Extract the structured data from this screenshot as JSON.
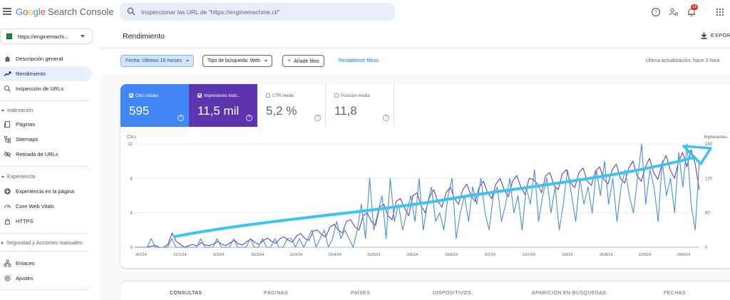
{
  "app": {
    "brand_google": "Google",
    "brand_product": "Search Console",
    "search_placeholder": "Inspeccionar las URL de \"https://enginemachine.cl/\"",
    "notification_count": "18",
    "icons": [
      "menu-icon",
      "search-icon",
      "help-icon",
      "account-settings-icon",
      "notifications-icon",
      "apps-grid-icon"
    ]
  },
  "sidebar": {
    "property_label": "https://enginemachi...",
    "items_top": [
      {
        "label": "Descripción general",
        "icon": "home-icon"
      },
      {
        "label": "Rendimiento",
        "icon": "trending-up-icon",
        "active": true
      },
      {
        "label": "Inspección de URLs",
        "icon": "search-icon"
      }
    ],
    "section_indexacion": "Indexación",
    "items_indexacion": [
      {
        "label": "Páginas",
        "icon": "pages-icon"
      },
      {
        "label": "Sitemaps",
        "icon": "sitemap-icon"
      },
      {
        "label": "Retirada de URLs",
        "icon": "eye-off-icon"
      }
    ],
    "section_experiencia": "Experiencia",
    "items_experiencia": [
      {
        "label": "Experiencia en la página",
        "icon": "plus-circle-icon"
      },
      {
        "label": "Core Web Vitals",
        "icon": "speed-icon"
      },
      {
        "label": "HTTPS",
        "icon": "lock-icon"
      }
    ],
    "section_seguridad": "Seguridad y Acciones manuales",
    "items_bottom": [
      {
        "label": "Enlaces",
        "icon": "links-icon"
      },
      {
        "label": "Ajustes",
        "icon": "settings-icon"
      }
    ]
  },
  "page": {
    "title": "Rendimiento",
    "export_label": "EXPORT",
    "filters": [
      {
        "label": "Fecha: Últimos 16 meses",
        "selected": true
      },
      {
        "label": "Tipo de búsqueda: Web",
        "selected": false
      }
    ],
    "add_filter": "Añadir filtro",
    "reset_filters": "Restablecer filtros",
    "last_update": "Última actualización: hace 3 hora"
  },
  "metrics": [
    {
      "label": "Clics totales",
      "value": "595",
      "checked": true,
      "color": "#4285f4"
    },
    {
      "label": "Impresiones total...",
      "value": "11,5 mil",
      "checked": true,
      "color": "#5e35b1"
    },
    {
      "label": "CTR medio",
      "value": "5,2 %",
      "checked": false
    },
    {
      "label": "Posición media",
      "value": "11,8",
      "checked": false
    }
  ],
  "chart_data": {
    "type": "line",
    "left_axis_label": "Clics",
    "right_axis_label": "Impresiones",
    "left_ticks": [
      "12",
      "8",
      "4",
      "0"
    ],
    "right_ticks": [
      "180",
      "120",
      "60",
      "0"
    ],
    "ylim_left": [
      0,
      12
    ],
    "ylim_right": [
      0,
      180
    ],
    "x_labels": [
      "4/2/24",
      "21/2/24",
      "9/3/24",
      "26/3/24",
      "12/4/24",
      "29/4/24",
      "16/5/24",
      "2/6/24",
      "19/6/24",
      "6/7/24",
      "23/7/24",
      "9/8/24",
      "26/8/24",
      "12/9/24",
      "29/9/24"
    ],
    "series": [
      {
        "name": "Clics totales",
        "color": "#4a8fdb",
        "values": [
          0,
          0,
          0,
          0,
          1,
          0,
          0,
          0,
          0,
          1,
          0,
          0,
          0,
          0,
          0,
          0,
          1,
          0,
          0,
          0,
          1,
          0,
          0,
          0,
          1,
          0,
          0,
          0,
          1,
          0,
          0,
          1,
          0,
          0,
          1,
          0,
          0,
          1,
          1,
          0,
          1,
          0,
          1,
          2,
          0,
          1,
          2,
          0,
          1,
          3,
          1,
          2,
          1,
          0,
          2,
          5,
          1,
          8,
          2,
          4,
          6,
          1,
          8,
          3,
          5,
          2,
          4,
          6,
          3,
          8,
          2,
          5,
          7,
          3,
          4,
          2,
          6,
          8,
          1,
          4,
          6,
          3,
          7,
          5,
          8,
          4,
          2,
          6,
          7,
          3,
          5,
          8,
          4,
          6,
          2,
          7,
          5,
          9,
          3,
          6,
          8,
          4,
          7,
          2,
          5,
          9,
          6,
          3,
          8,
          5,
          7,
          4,
          9,
          6,
          10,
          5,
          8,
          3,
          7,
          9,
          6,
          4,
          8,
          12,
          5,
          9,
          7,
          3,
          10,
          6,
          8,
          4,
          11,
          7,
          12,
          5,
          2,
          10
        ]
      },
      {
        "name": "Impresiones totales",
        "color": "#6a3fb8",
        "values": [
          0,
          0,
          0,
          0,
          2,
          3,
          0,
          0,
          5,
          25,
          10,
          5,
          0,
          3,
          5,
          2,
          8,
          4,
          3,
          6,
          10,
          5,
          3,
          8,
          12,
          6,
          4,
          10,
          14,
          8,
          5,
          12,
          16,
          10,
          7,
          15,
          18,
          12,
          9,
          20,
          24,
          15,
          12,
          28,
          30,
          22,
          18,
          35,
          40,
          30,
          25,
          45,
          48,
          36,
          30,
          55,
          60,
          45,
          38,
          70,
          75,
          55,
          48,
          80,
          85,
          68,
          55,
          90,
          95,
          72,
          60,
          88,
          100,
          80,
          70,
          95,
          105,
          85,
          75,
          100,
          110,
          90,
          80,
          105,
          115,
          95,
          85,
          110,
          120,
          100,
          88,
          115,
          125,
          105,
          92,
          120,
          118,
          110,
          95,
          125,
          130,
          108,
          100,
          128,
          135,
          112,
          104,
          130,
          138,
          115,
          108,
          133,
          140,
          118,
          110,
          135,
          145,
          120,
          112,
          138,
          150,
          125,
          115,
          140,
          155,
          130,
          118,
          145,
          160,
          135,
          120,
          150,
          165,
          140,
          170,
          145,
          100
        ]
      }
    ]
  },
  "tabs": [
    "CONSULTAS",
    "PÁGINAS",
    "PAÍSES",
    "DISPOSITIVOS",
    "APARICIÓN EN BÚSQUEDAS",
    "FECHAS"
  ]
}
